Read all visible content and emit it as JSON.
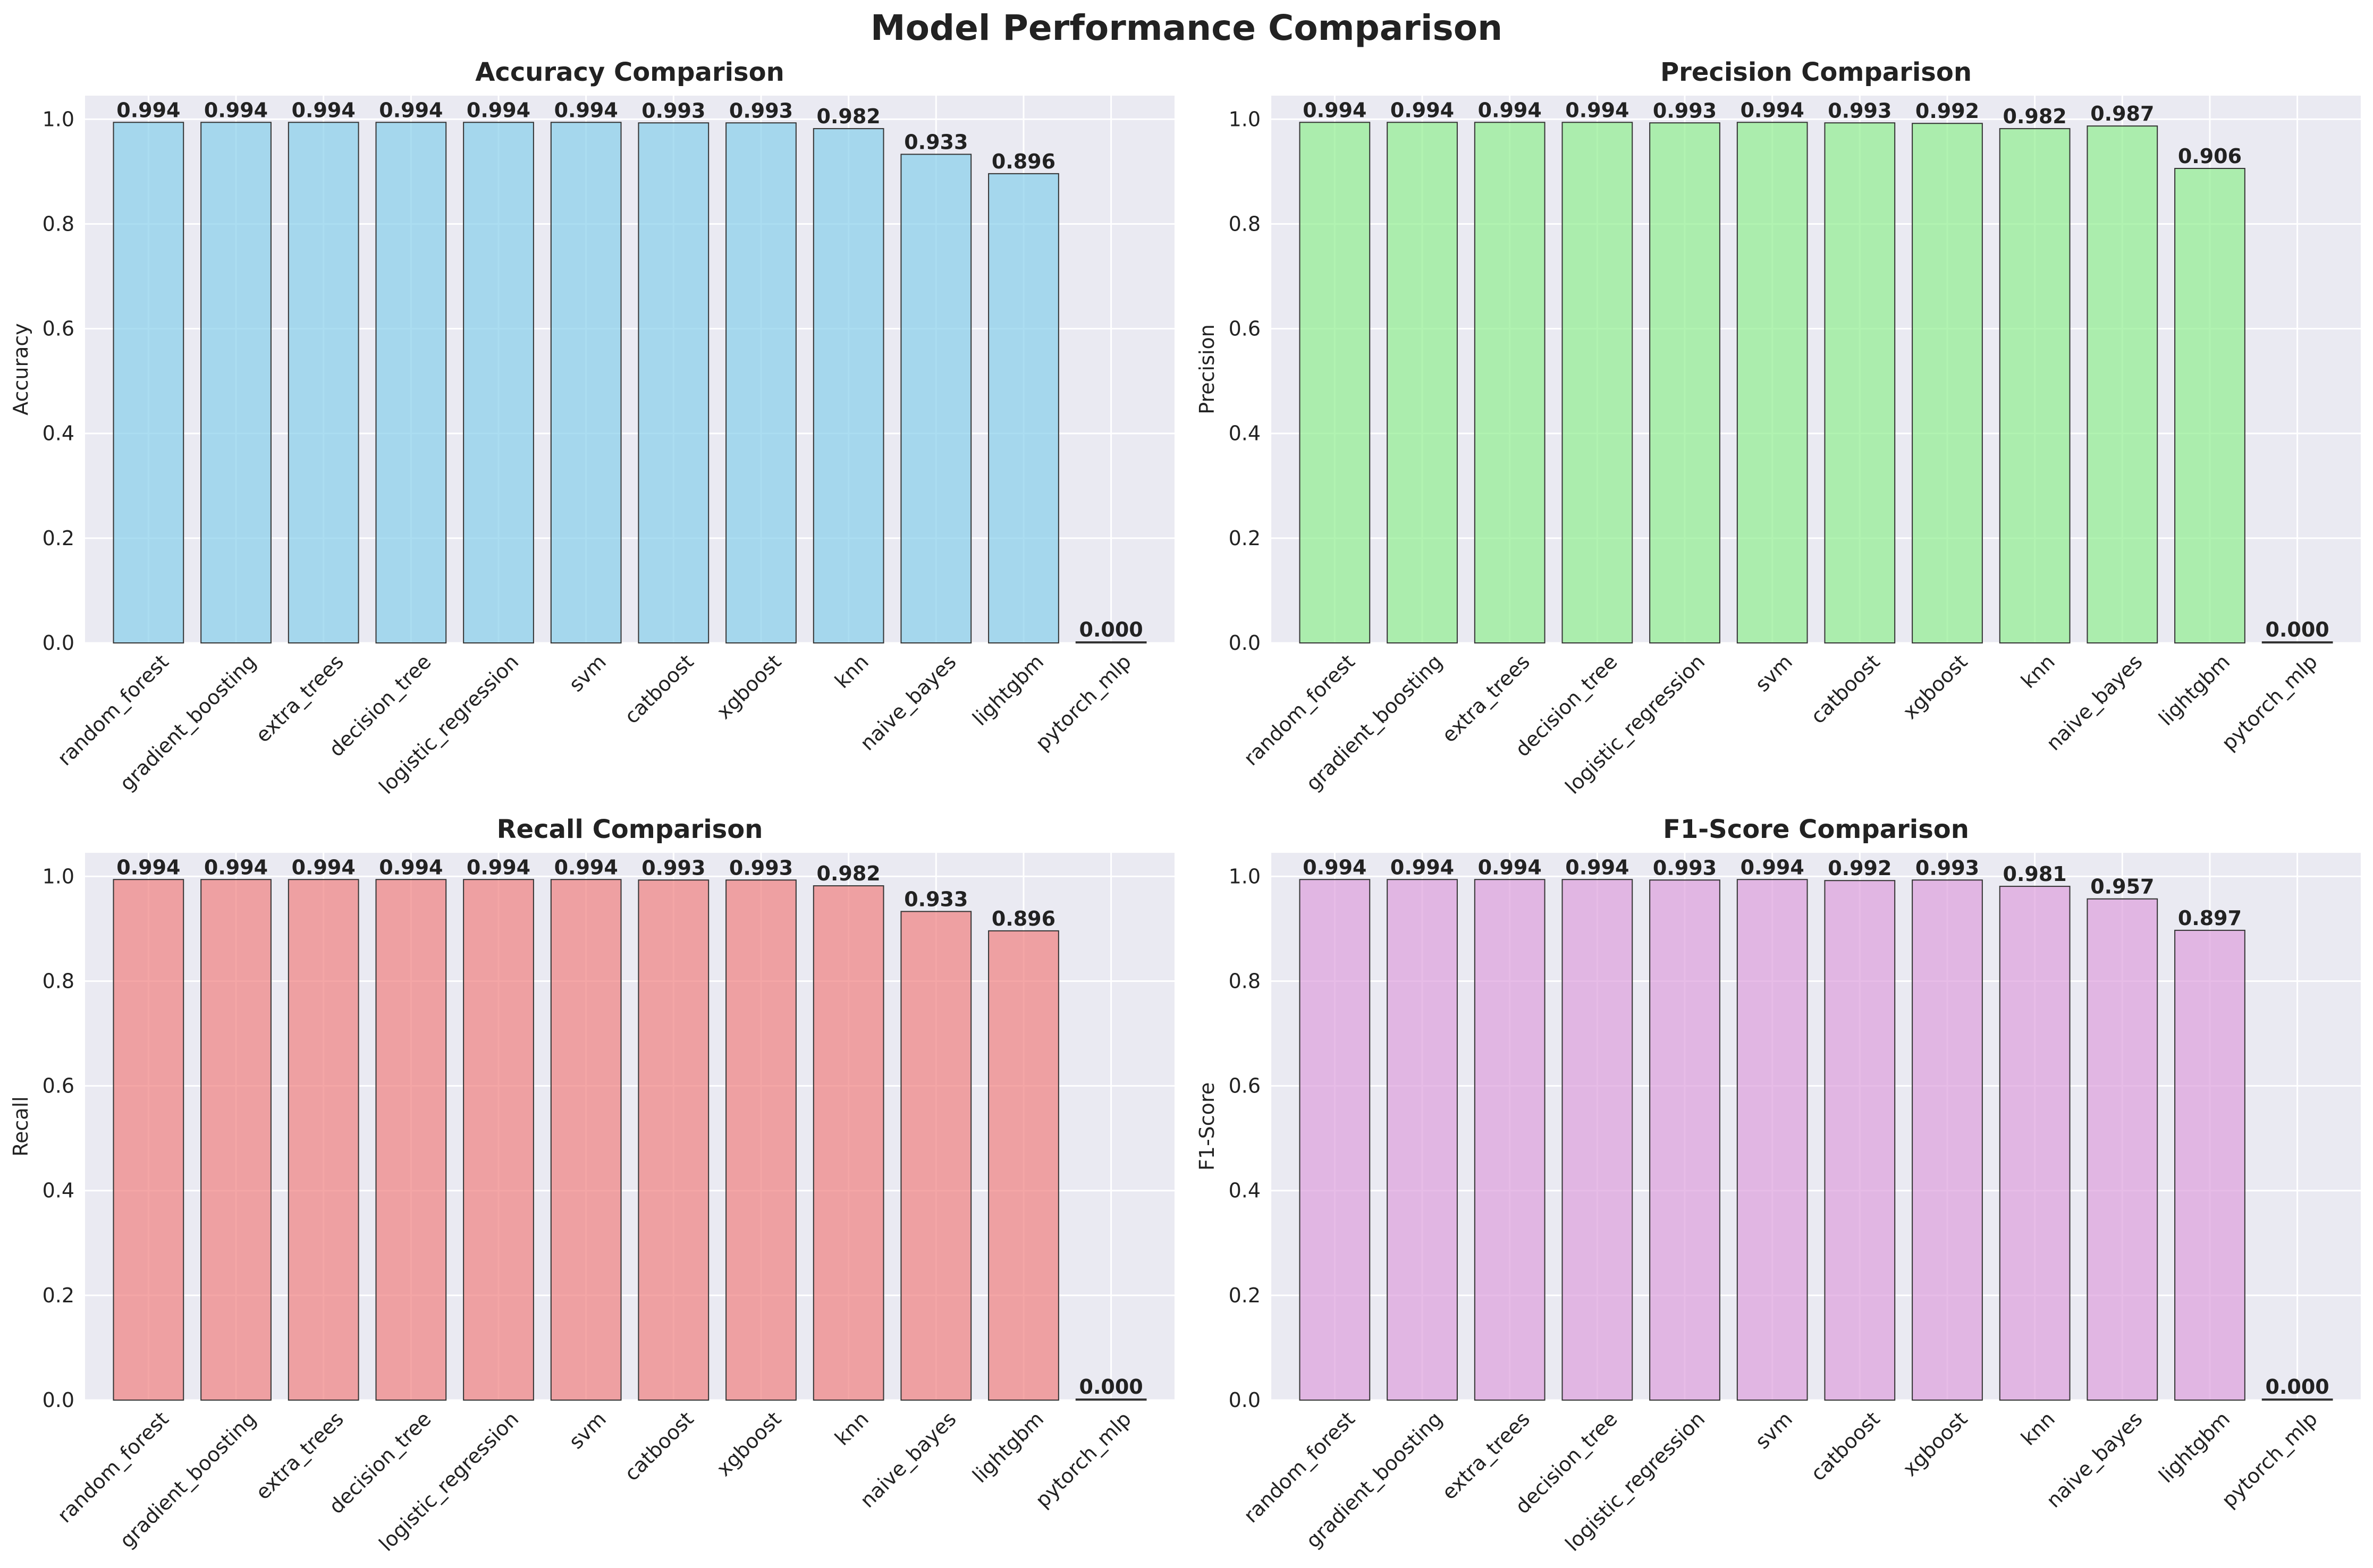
{
  "title": "Model Performance Comparison",
  "chart_data": [
    {
      "type": "bar",
      "title": "Accuracy Comparison",
      "ylabel": "Accuracy",
      "xlabel": "",
      "color": "#87ceeb",
      "categories": [
        "random_forest",
        "gradient_boosting",
        "extra_trees",
        "decision_tree",
        "logistic_regression",
        "svm",
        "catboost",
        "xgboost",
        "knn",
        "naive_bayes",
        "lightgbm",
        "pytorch_mlp"
      ],
      "values": [
        0.994,
        0.994,
        0.994,
        0.994,
        0.994,
        0.994,
        0.993,
        0.993,
        0.982,
        0.933,
        0.896,
        0.0
      ],
      "value_labels": [
        "0.994",
        "0.994",
        "0.994",
        "0.994",
        "0.994",
        "0.994",
        "0.993",
        "0.993",
        "0.982",
        "0.933",
        "0.896",
        "0.000"
      ],
      "ylim": [
        0,
        1.045
      ],
      "yticks": [
        "0.0",
        "0.2",
        "0.4",
        "0.6",
        "0.8",
        "1.0"
      ],
      "grid": true
    },
    {
      "type": "bar",
      "title": "Precision Comparison",
      "ylabel": "Precision",
      "xlabel": "",
      "color": "#90ee90",
      "categories": [
        "random_forest",
        "gradient_boosting",
        "extra_trees",
        "decision_tree",
        "logistic_regression",
        "svm",
        "catboost",
        "xgboost",
        "knn",
        "naive_bayes",
        "lightgbm",
        "pytorch_mlp"
      ],
      "values": [
        0.994,
        0.994,
        0.994,
        0.994,
        0.993,
        0.994,
        0.993,
        0.992,
        0.982,
        0.987,
        0.906,
        0.0
      ],
      "value_labels": [
        "0.994",
        "0.994",
        "0.994",
        "0.994",
        "0.993",
        "0.994",
        "0.993",
        "0.992",
        "0.982",
        "0.987",
        "0.906",
        "0.000"
      ],
      "ylim": [
        0,
        1.045
      ],
      "yticks": [
        "0.0",
        "0.2",
        "0.4",
        "0.6",
        "0.8",
        "1.0"
      ],
      "grid": true
    },
    {
      "type": "bar",
      "title": "Recall Comparison",
      "ylabel": "Recall",
      "xlabel": "",
      "color": "#f08080",
      "categories": [
        "random_forest",
        "gradient_boosting",
        "extra_trees",
        "decision_tree",
        "logistic_regression",
        "svm",
        "catboost",
        "xgboost",
        "knn",
        "naive_bayes",
        "lightgbm",
        "pytorch_mlp"
      ],
      "values": [
        0.994,
        0.994,
        0.994,
        0.994,
        0.994,
        0.994,
        0.993,
        0.993,
        0.982,
        0.933,
        0.896,
        0.0
      ],
      "value_labels": [
        "0.994",
        "0.994",
        "0.994",
        "0.994",
        "0.994",
        "0.994",
        "0.993",
        "0.993",
        "0.982",
        "0.933",
        "0.896",
        "0.000"
      ],
      "ylim": [
        0,
        1.045
      ],
      "yticks": [
        "0.0",
        "0.2",
        "0.4",
        "0.6",
        "0.8",
        "1.0"
      ],
      "grid": true
    },
    {
      "type": "bar",
      "title": "F1-Score Comparison",
      "ylabel": "F1-Score",
      "xlabel": "",
      "color": "#dda0dd",
      "categories": [
        "random_forest",
        "gradient_boosting",
        "extra_trees",
        "decision_tree",
        "logistic_regression",
        "svm",
        "catboost",
        "xgboost",
        "knn",
        "naive_bayes",
        "lightgbm",
        "pytorch_mlp"
      ],
      "values": [
        0.994,
        0.994,
        0.994,
        0.994,
        0.993,
        0.994,
        0.992,
        0.993,
        0.981,
        0.957,
        0.897,
        0.0
      ],
      "value_labels": [
        "0.994",
        "0.994",
        "0.994",
        "0.994",
        "0.993",
        "0.994",
        "0.992",
        "0.993",
        "0.981",
        "0.957",
        "0.897",
        "0.000"
      ],
      "ylim": [
        0,
        1.045
      ],
      "yticks": [
        "0.0",
        "0.2",
        "0.4",
        "0.6",
        "0.8",
        "1.0"
      ],
      "grid": true
    }
  ]
}
